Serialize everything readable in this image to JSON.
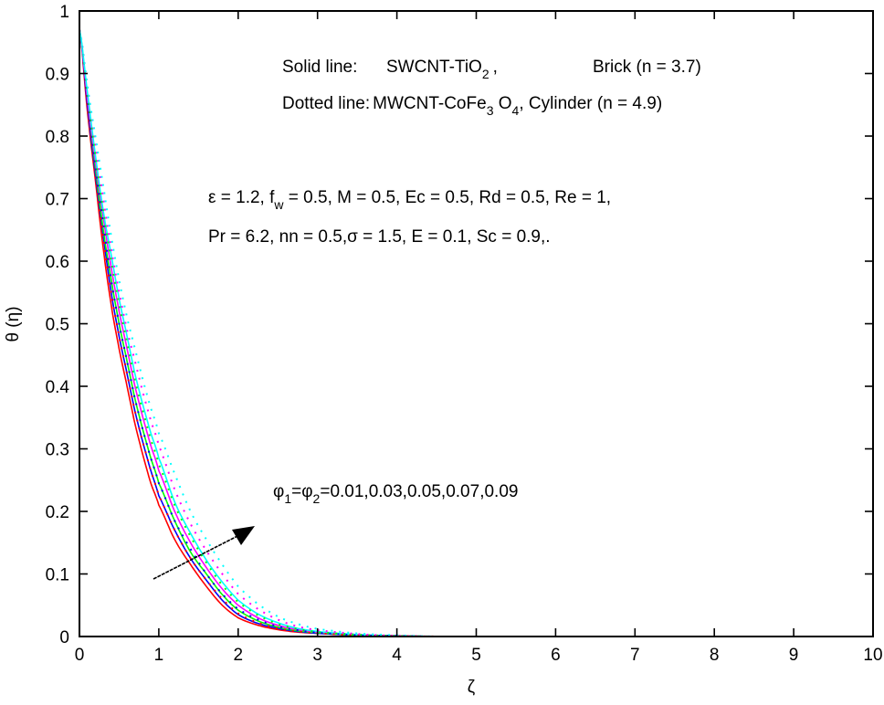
{
  "chart_data": {
    "type": "line",
    "title": "",
    "xlabel": "ζ",
    "ylabel": "θ (η)",
    "xlim": [
      0,
      10
    ],
    "ylim": [
      0,
      1
    ],
    "xticks": [
      0,
      1,
      2,
      3,
      4,
      5,
      6,
      7,
      8,
      9,
      10
    ],
    "yticks": [
      0,
      0.1,
      0.2,
      0.3,
      0.4,
      0.5,
      0.6,
      0.7,
      0.8,
      0.9,
      1
    ],
    "ytick_labels": [
      "0",
      "0.1",
      "0.2",
      "0.3",
      "0.4",
      "0.5",
      "0.6",
      "0.7",
      "0.8",
      "0.9",
      "1"
    ],
    "grid": false,
    "x": [
      0,
      0.1,
      0.2,
      0.3,
      0.4,
      0.5,
      0.6,
      0.7,
      0.8,
      0.9,
      1.0,
      1.2,
      1.4,
      1.6,
      1.8,
      2.0,
      2.25,
      2.5,
      2.75,
      3.0,
      3.5,
      4.0,
      4.5,
      5,
      6,
      7,
      8,
      9,
      10
    ],
    "series": [
      {
        "name": "SWCNT-TiO2 Brick, φ=0.01",
        "style": "solid",
        "color": "#ff0000",
        "values": [
          0.97,
          0.84,
          0.73,
          0.62,
          0.53,
          0.46,
          0.4,
          0.34,
          0.29,
          0.245,
          0.21,
          0.155,
          0.115,
          0.08,
          0.05,
          0.03,
          0.018,
          0.011,
          0.007,
          0.005,
          0.002,
          0.001,
          0,
          0,
          0,
          0,
          0,
          0,
          0
        ]
      },
      {
        "name": "SWCNT-TiO2 Brick, φ=0.03",
        "style": "solid",
        "color": "#0000ff",
        "values": [
          0.97,
          0.85,
          0.74,
          0.64,
          0.55,
          0.48,
          0.42,
          0.36,
          0.31,
          0.265,
          0.225,
          0.17,
          0.125,
          0.09,
          0.058,
          0.035,
          0.021,
          0.013,
          0.008,
          0.005,
          0.002,
          0.001,
          0,
          0,
          0,
          0,
          0,
          0,
          0
        ]
      },
      {
        "name": "SWCNT-TiO2 Brick, φ=0.05",
        "style": "solid",
        "color": "#00ff00",
        "values": [
          0.97,
          0.86,
          0.75,
          0.65,
          0.57,
          0.5,
          0.44,
          0.38,
          0.33,
          0.285,
          0.245,
          0.185,
          0.135,
          0.1,
          0.067,
          0.042,
          0.025,
          0.015,
          0.009,
          0.006,
          0.002,
          0.001,
          0,
          0,
          0,
          0,
          0,
          0,
          0
        ]
      },
      {
        "name": "SWCNT-TiO2 Brick, φ=0.07",
        "style": "solid",
        "color": "#ff00ff",
        "values": [
          0.97,
          0.86,
          0.76,
          0.67,
          0.59,
          0.52,
          0.46,
          0.4,
          0.35,
          0.305,
          0.265,
          0.2,
          0.15,
          0.11,
          0.076,
          0.05,
          0.03,
          0.018,
          0.011,
          0.007,
          0.003,
          0.001,
          0,
          0,
          0,
          0,
          0,
          0,
          0
        ]
      },
      {
        "name": "SWCNT-TiO2 Brick, φ=0.09",
        "style": "solid",
        "color": "#00ffff",
        "values": [
          0.97,
          0.87,
          0.77,
          0.68,
          0.61,
          0.54,
          0.48,
          0.42,
          0.37,
          0.325,
          0.285,
          0.215,
          0.165,
          0.122,
          0.087,
          0.058,
          0.036,
          0.022,
          0.013,
          0.008,
          0.003,
          0.001,
          0,
          0,
          0,
          0,
          0,
          0,
          0
        ]
      },
      {
        "name": "MWCNT-CoFe3O4 Cylinder, φ=0.01",
        "style": "dotted",
        "color": "#ff0000",
        "values": [
          0.97,
          0.85,
          0.74,
          0.64,
          0.55,
          0.48,
          0.42,
          0.36,
          0.31,
          0.265,
          0.225,
          0.17,
          0.125,
          0.09,
          0.06,
          0.037,
          0.022,
          0.013,
          0.008,
          0.005,
          0.002,
          0.001,
          0,
          0,
          0,
          0,
          0,
          0,
          0
        ]
      },
      {
        "name": "MWCNT-CoFe3O4 Cylinder, φ=0.03",
        "style": "dotted",
        "color": "#0000ff",
        "values": [
          0.97,
          0.86,
          0.75,
          0.66,
          0.57,
          0.5,
          0.44,
          0.38,
          0.33,
          0.285,
          0.245,
          0.185,
          0.14,
          0.1,
          0.068,
          0.044,
          0.027,
          0.016,
          0.01,
          0.006,
          0.002,
          0.001,
          0,
          0,
          0,
          0,
          0,
          0,
          0
        ]
      },
      {
        "name": "MWCNT-CoFe3O4 Cylinder, φ=0.05",
        "style": "dotted",
        "color": "#00ff00",
        "values": [
          0.97,
          0.87,
          0.77,
          0.68,
          0.6,
          0.53,
          0.47,
          0.41,
          0.36,
          0.315,
          0.275,
          0.21,
          0.16,
          0.118,
          0.082,
          0.055,
          0.034,
          0.02,
          0.012,
          0.007,
          0.003,
          0.001,
          0,
          0,
          0,
          0,
          0,
          0,
          0
        ]
      },
      {
        "name": "MWCNT-CoFe3O4 Cylinder, φ=0.07",
        "style": "dotted",
        "color": "#ff00ff",
        "values": [
          0.97,
          0.88,
          0.79,
          0.7,
          0.62,
          0.55,
          0.49,
          0.44,
          0.39,
          0.345,
          0.305,
          0.235,
          0.18,
          0.137,
          0.1,
          0.068,
          0.044,
          0.027,
          0.016,
          0.01,
          0.004,
          0.001,
          0,
          0,
          0,
          0,
          0,
          0,
          0
        ]
      },
      {
        "name": "MWCNT-CoFe3O4 Cylinder, φ=0.09",
        "style": "dotted",
        "color": "#00ffff",
        "values": [
          0.97,
          0.88,
          0.8,
          0.72,
          0.64,
          0.57,
          0.51,
          0.46,
          0.41,
          0.365,
          0.325,
          0.26,
          0.2,
          0.155,
          0.115,
          0.08,
          0.052,
          0.032,
          0.02,
          0.012,
          0.005,
          0.002,
          0,
          0,
          0,
          0,
          0,
          0,
          0
        ]
      }
    ],
    "annotations": [
      {
        "text": "Solid line:   SWCNT-TiO2 ,          Brick (n = 3.7)"
      },
      {
        "text": "Dotted line: MWCNT-CoFe3 O4, Cylinder (n = 4.9)"
      },
      {
        "text": "ε = 1.2, fw = 0.5, M = 0.5, Ec = 0.5, Rd = 0.5, Re = 1,"
      },
      {
        "text": "Pr = 6.2, nn = 0.5,σ = 1.5, E = 0.1, Sc = 0.9,."
      },
      {
        "text": "φ1=φ2=0.01,0.03,0.05,0.07,0.09",
        "arrow": "increasing direction"
      }
    ]
  },
  "labels": {
    "xlabel": "ζ",
    "ylabel": "θ (η)",
    "legend_solid_prefix": "Solid line:",
    "legend_solid_fluid": "SWCNT-TiO",
    "legend_solid_sub": "2",
    "legend_solid_comma": ",",
    "legend_solid_shape": "Brick (n = 3.7)",
    "legend_dotted_prefix": "Dotted line:",
    "legend_dotted_fluid": "MWCNT-CoFe",
    "legend_dotted_sub1": "3",
    "legend_dotted_o": " O",
    "legend_dotted_sub2": "4",
    "legend_dotted_shape": ", Cylinder (n = 4.9)",
    "params_line1_a": "ε = 1.2, f",
    "params_line1_sub": "w",
    "params_line1_b": " = 0.5, M = 0.5, Ec = 0.5, Rd = 0.5, Re = 1,",
    "params_line2": "Pr = 6.2, nn = 0.5,σ = 1.5, E = 0.1, Sc = 0.9,.",
    "phi_a": "φ",
    "phi_sub1": "1",
    "phi_eq": "=φ",
    "phi_sub2": "2",
    "phi_vals": "=0.01,0.03,0.05,0.07,0.09"
  }
}
